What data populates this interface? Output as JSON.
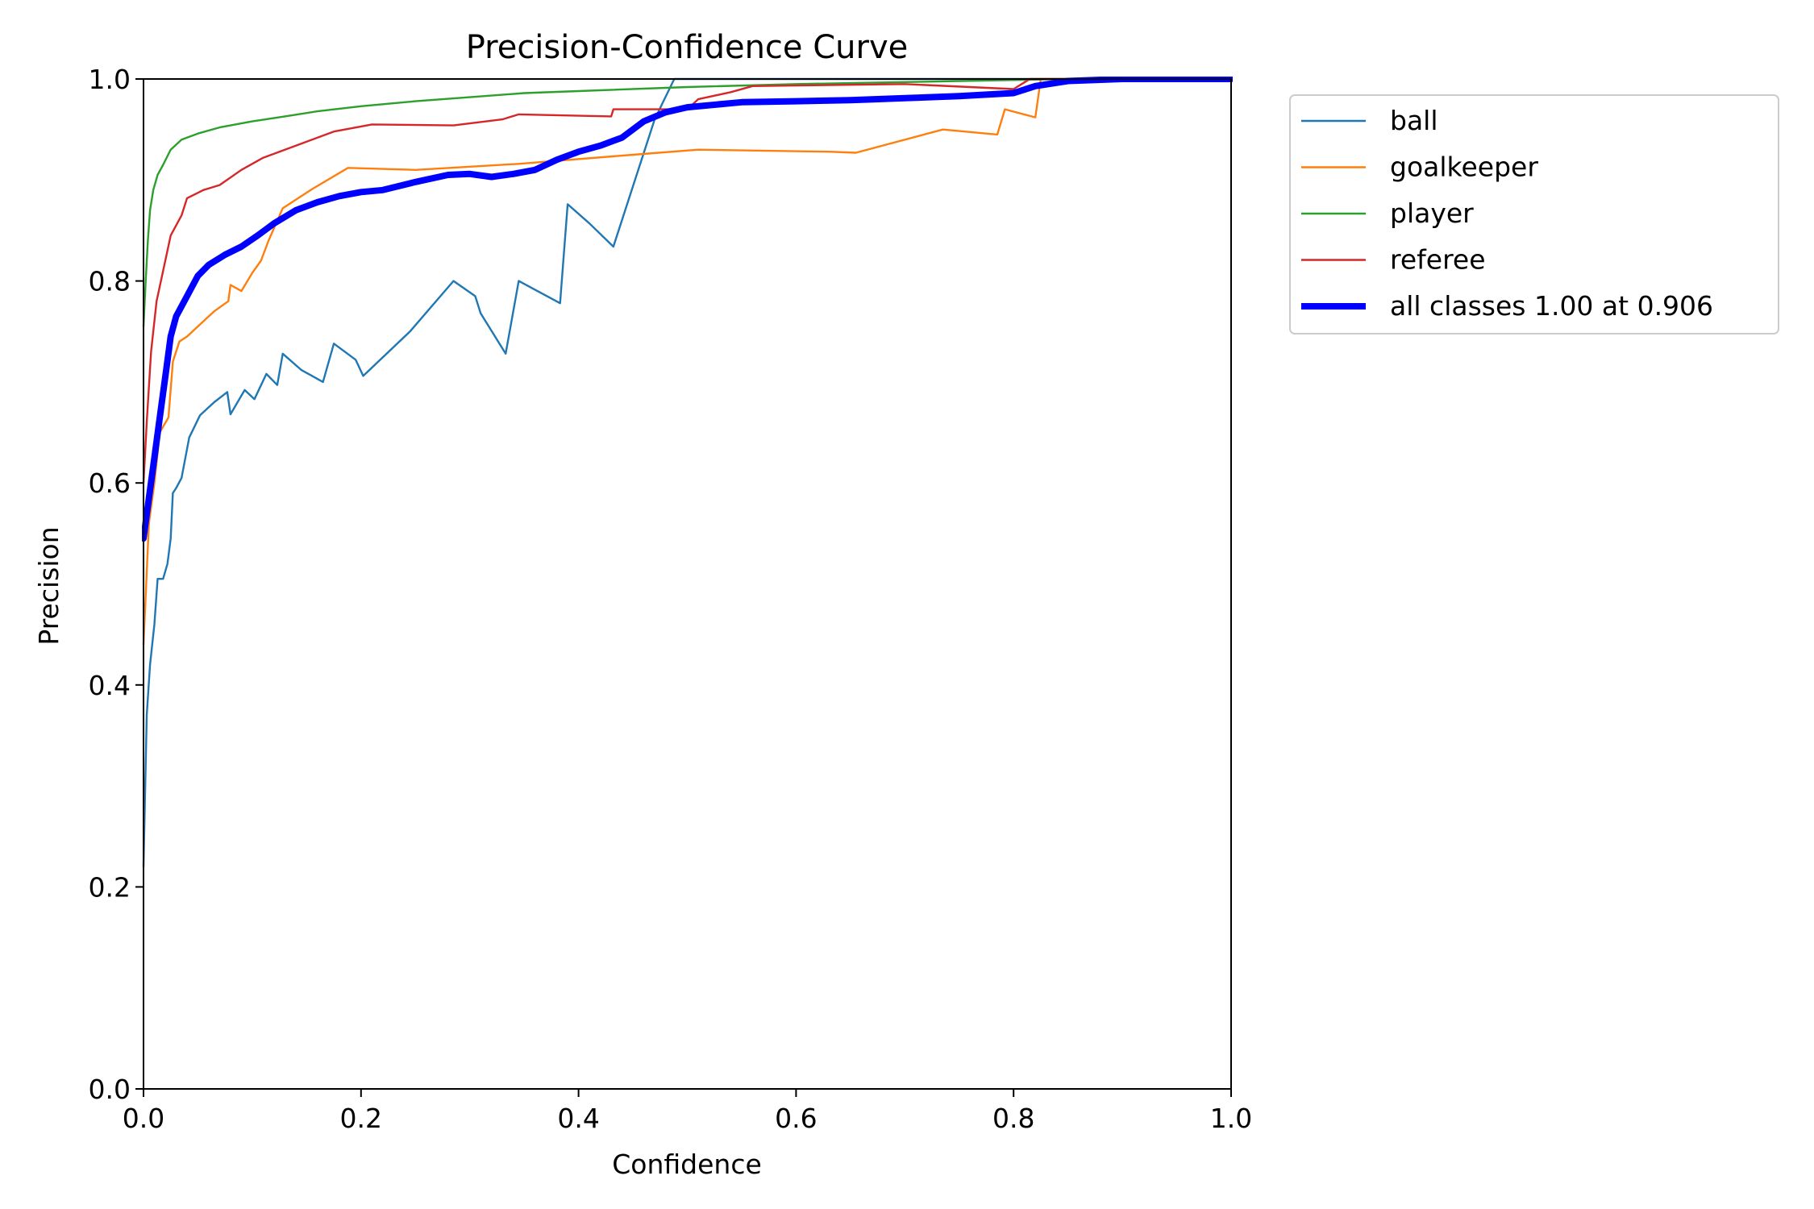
{
  "chart_data": {
    "type": "line",
    "title": "Precision-Confidence Curve",
    "xlabel": "Confidence",
    "ylabel": "Precision",
    "xlim": [
      0,
      1
    ],
    "ylim": [
      0,
      1
    ],
    "xticks": [
      "0.0",
      "0.2",
      "0.4",
      "0.6",
      "0.8",
      "1.0"
    ],
    "yticks": [
      "0.0",
      "0.2",
      "0.4",
      "0.6",
      "0.8",
      "1.0"
    ],
    "grid": false,
    "legend_position": "outside-top-right",
    "series": [
      {
        "name": "ball",
        "color": "#1f77b4",
        "points": [
          [
            0.0,
            0.22
          ],
          [
            0.003,
            0.37
          ],
          [
            0.006,
            0.42
          ],
          [
            0.01,
            0.46
          ],
          [
            0.013,
            0.505
          ],
          [
            0.018,
            0.505
          ],
          [
            0.022,
            0.52
          ],
          [
            0.025,
            0.545
          ],
          [
            0.027,
            0.59
          ],
          [
            0.03,
            0.595
          ],
          [
            0.035,
            0.605
          ],
          [
            0.042,
            0.645
          ],
          [
            0.052,
            0.667
          ],
          [
            0.065,
            0.68
          ],
          [
            0.077,
            0.69
          ],
          [
            0.08,
            0.668
          ],
          [
            0.093,
            0.692
          ],
          [
            0.102,
            0.683
          ],
          [
            0.113,
            0.708
          ],
          [
            0.123,
            0.697
          ],
          [
            0.128,
            0.728
          ],
          [
            0.145,
            0.712
          ],
          [
            0.165,
            0.7
          ],
          [
            0.175,
            0.738
          ],
          [
            0.195,
            0.722
          ],
          [
            0.202,
            0.706
          ],
          [
            0.245,
            0.75
          ],
          [
            0.285,
            0.8
          ],
          [
            0.305,
            0.785
          ],
          [
            0.31,
            0.768
          ],
          [
            0.333,
            0.728
          ],
          [
            0.345,
            0.8
          ],
          [
            0.383,
            0.778
          ],
          [
            0.39,
            0.876
          ],
          [
            0.41,
            0.857
          ],
          [
            0.432,
            0.834
          ],
          [
            0.47,
            0.96
          ],
          [
            0.488,
            1.0
          ],
          [
            1.0,
            1.0
          ]
        ]
      },
      {
        "name": "goalkeeper",
        "color": "#ff7f0e",
        "points": [
          [
            0.0,
            0.44
          ],
          [
            0.005,
            0.56
          ],
          [
            0.01,
            0.6
          ],
          [
            0.015,
            0.65
          ],
          [
            0.023,
            0.665
          ],
          [
            0.027,
            0.72
          ],
          [
            0.033,
            0.74
          ],
          [
            0.04,
            0.745
          ],
          [
            0.055,
            0.76
          ],
          [
            0.065,
            0.77
          ],
          [
            0.078,
            0.78
          ],
          [
            0.08,
            0.796
          ],
          [
            0.09,
            0.79
          ],
          [
            0.1,
            0.808
          ],
          [
            0.108,
            0.82
          ],
          [
            0.115,
            0.84
          ],
          [
            0.128,
            0.872
          ],
          [
            0.155,
            0.891
          ],
          [
            0.188,
            0.912
          ],
          [
            0.25,
            0.91
          ],
          [
            0.345,
            0.916
          ],
          [
            0.45,
            0.925
          ],
          [
            0.51,
            0.93
          ],
          [
            0.63,
            0.928
          ],
          [
            0.655,
            0.927
          ],
          [
            0.735,
            0.95
          ],
          [
            0.785,
            0.945
          ],
          [
            0.792,
            0.97
          ],
          [
            0.82,
            0.962
          ],
          [
            0.825,
            1.0
          ],
          [
            1.0,
            1.0
          ]
        ]
      },
      {
        "name": "player",
        "color": "#2ca02c",
        "points": [
          [
            0.0,
            0.755
          ],
          [
            0.002,
            0.8
          ],
          [
            0.004,
            0.84
          ],
          [
            0.006,
            0.87
          ],
          [
            0.009,
            0.89
          ],
          [
            0.013,
            0.905
          ],
          [
            0.018,
            0.915
          ],
          [
            0.025,
            0.93
          ],
          [
            0.035,
            0.94
          ],
          [
            0.05,
            0.946
          ],
          [
            0.07,
            0.952
          ],
          [
            0.1,
            0.958
          ],
          [
            0.13,
            0.963
          ],
          [
            0.16,
            0.968
          ],
          [
            0.2,
            0.973
          ],
          [
            0.25,
            0.978
          ],
          [
            0.3,
            0.982
          ],
          [
            0.35,
            0.986
          ],
          [
            0.4,
            0.988
          ],
          [
            0.5,
            0.992
          ],
          [
            0.6,
            0.995
          ],
          [
            0.7,
            0.997
          ],
          [
            0.8,
            0.999
          ],
          [
            0.85,
            1.0
          ],
          [
            1.0,
            1.0
          ]
        ]
      },
      {
        "name": "referee",
        "color": "#d62728",
        "points": [
          [
            0.0,
            0.6
          ],
          [
            0.003,
            0.66
          ],
          [
            0.007,
            0.73
          ],
          [
            0.012,
            0.78
          ],
          [
            0.018,
            0.81
          ],
          [
            0.025,
            0.845
          ],
          [
            0.035,
            0.865
          ],
          [
            0.04,
            0.882
          ],
          [
            0.055,
            0.89
          ],
          [
            0.07,
            0.895
          ],
          [
            0.09,
            0.91
          ],
          [
            0.11,
            0.922
          ],
          [
            0.13,
            0.93
          ],
          [
            0.15,
            0.938
          ],
          [
            0.175,
            0.948
          ],
          [
            0.21,
            0.955
          ],
          [
            0.285,
            0.954
          ],
          [
            0.33,
            0.96
          ],
          [
            0.345,
            0.965
          ],
          [
            0.43,
            0.963
          ],
          [
            0.432,
            0.97
          ],
          [
            0.5,
            0.97
          ],
          [
            0.51,
            0.98
          ],
          [
            0.54,
            0.987
          ],
          [
            0.56,
            0.993
          ],
          [
            0.7,
            0.995
          ],
          [
            0.8,
            0.99
          ],
          [
            0.815,
            1.0
          ],
          [
            1.0,
            1.0
          ]
        ]
      },
      {
        "name": "all classes 1.00 at 0.906",
        "color": "#0000ff",
        "thick": true,
        "points": [
          [
            0.0,
            0.545
          ],
          [
            0.005,
            0.585
          ],
          [
            0.01,
            0.625
          ],
          [
            0.015,
            0.665
          ],
          [
            0.02,
            0.705
          ],
          [
            0.025,
            0.745
          ],
          [
            0.03,
            0.765
          ],
          [
            0.04,
            0.785
          ],
          [
            0.05,
            0.805
          ],
          [
            0.06,
            0.816
          ],
          [
            0.075,
            0.826
          ],
          [
            0.09,
            0.834
          ],
          [
            0.105,
            0.845
          ],
          [
            0.12,
            0.857
          ],
          [
            0.14,
            0.87
          ],
          [
            0.16,
            0.878
          ],
          [
            0.18,
            0.884
          ],
          [
            0.2,
            0.888
          ],
          [
            0.22,
            0.89
          ],
          [
            0.25,
            0.898
          ],
          [
            0.28,
            0.905
          ],
          [
            0.3,
            0.906
          ],
          [
            0.32,
            0.903
          ],
          [
            0.34,
            0.906
          ],
          [
            0.36,
            0.91
          ],
          [
            0.38,
            0.92
          ],
          [
            0.4,
            0.928
          ],
          [
            0.42,
            0.934
          ],
          [
            0.44,
            0.942
          ],
          [
            0.46,
            0.958
          ],
          [
            0.48,
            0.967
          ],
          [
            0.5,
            0.972
          ],
          [
            0.55,
            0.977
          ],
          [
            0.6,
            0.978
          ],
          [
            0.65,
            0.979
          ],
          [
            0.7,
            0.981
          ],
          [
            0.75,
            0.983
          ],
          [
            0.8,
            0.986
          ],
          [
            0.82,
            0.993
          ],
          [
            0.85,
            0.998
          ],
          [
            0.9,
            1.0
          ],
          [
            1.0,
            1.0
          ]
        ]
      }
    ]
  }
}
